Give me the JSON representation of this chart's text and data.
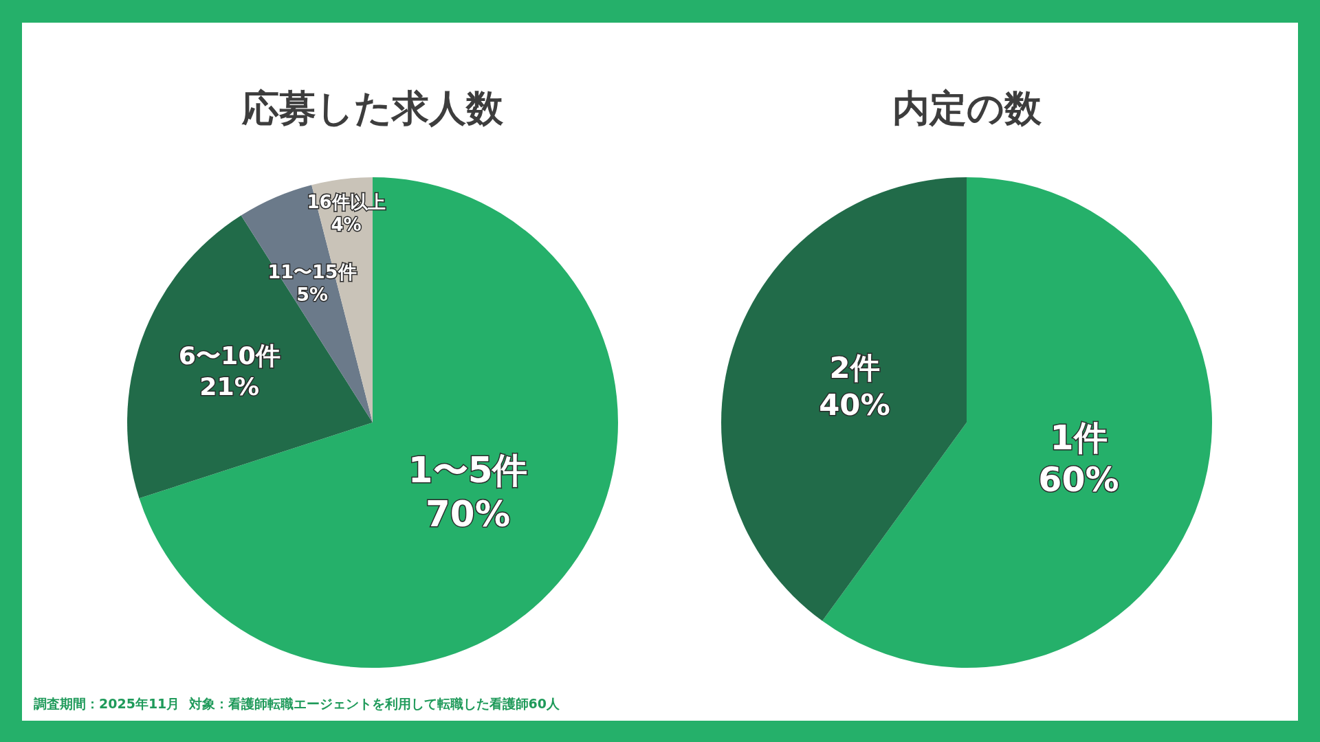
{
  "chart_data": [
    {
      "type": "pie",
      "title": "応募した求人数",
      "categories": [
        "1〜5件",
        "6〜10件",
        "11〜15件",
        "16件以上"
      ],
      "values": [
        70,
        21,
        5,
        4
      ],
      "value_labels": [
        "70%",
        "21%",
        "5%",
        "4%"
      ],
      "colors": [
        "#25b06a",
        "#216b49",
        "#6b7a8a",
        "#c9c3b8"
      ],
      "legend": false,
      "annotations": [
        "調査期間：2025年11月  対象：看護師転職エージェントを利用して転職した看護師60人"
      ]
    },
    {
      "type": "pie",
      "title": "内定の数",
      "categories": [
        "1件",
        "2件"
      ],
      "values": [
        60,
        40
      ],
      "value_labels": [
        "60%",
        "40%"
      ],
      "colors": [
        "#25b06a",
        "#216b49"
      ],
      "legend": false
    }
  ]
}
